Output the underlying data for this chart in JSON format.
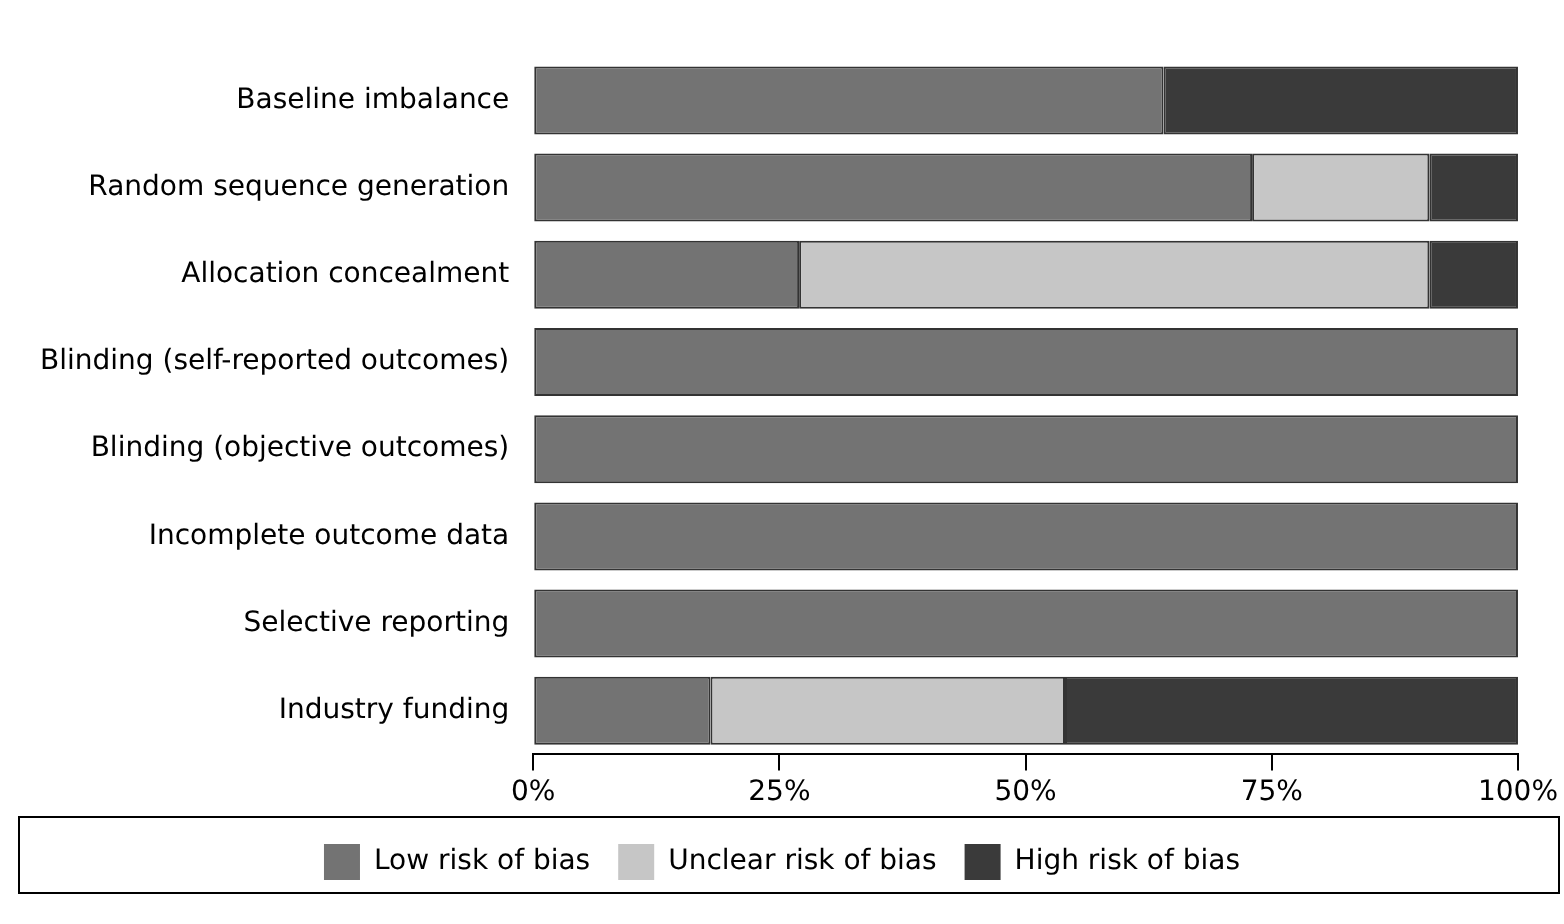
{
  "chart_data": {
    "type": "bar",
    "orientation": "horizontal",
    "stacked": true,
    "categories": [
      "Baseline imbalance",
      "Random sequence generation",
      "Allocation concealment",
      "Blinding (self-reported outcomes)",
      "Blinding (objective outcomes)",
      "Incomplete outcome data",
      "Selective reporting",
      "Industry funding"
    ],
    "series": [
      {
        "name": "Low risk of bias",
        "color": "#737373",
        "values": [
          64,
          73,
          27,
          100,
          100,
          100,
          100,
          18
        ]
      },
      {
        "name": "Unclear risk of bias",
        "color": "#c6c6c6",
        "values": [
          0,
          18,
          64,
          0,
          0,
          0,
          0,
          36
        ]
      },
      {
        "name": "High risk of bias",
        "color": "#3a3a3a",
        "values": [
          36,
          9,
          9,
          0,
          0,
          0,
          0,
          46
        ]
      }
    ],
    "xlim": [
      0,
      100
    ],
    "xticks": [
      {
        "value": 0,
        "label": "0%"
      },
      {
        "value": 25,
        "label": "25%"
      },
      {
        "value": 50,
        "label": "50%"
      },
      {
        "value": 75,
        "label": "75%"
      },
      {
        "value": 100,
        "label": "100%"
      }
    ],
    "grid": false,
    "legend": "bottom"
  }
}
